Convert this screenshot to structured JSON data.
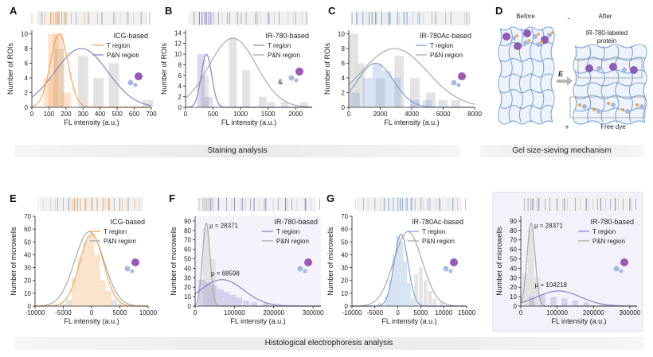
{
  "labels": {
    "staining_band": "Staining analysis",
    "gel_band": "Gel size-sieving mechanism",
    "histo_band": "Histological electrophoresis analysis"
  },
  "colors": {
    "orange": "#f5a356",
    "purple": "#8a84c9",
    "blue": "#7ea3d8",
    "gray": "#aaaaaa",
    "bar": "#dcdcdc"
  },
  "panel_d": {
    "label": "D",
    "before": "Before",
    "after": "After",
    "protein_label": "IR-780-labeled protein",
    "field": "E",
    "minus": "-",
    "plus": "+",
    "free_dye": "Free dye"
  },
  "chart_data": [
    {
      "id": "A",
      "type": "bar",
      "title": "ICG-based",
      "xlabel": "FL intensity (a.u.)",
      "ylabel": "Number of ROIs",
      "xlim": [
        0,
        700
      ],
      "ylim": [
        0,
        10.5
      ],
      "xticks": [
        0,
        100,
        200,
        300,
        400,
        500,
        600,
        700
      ],
      "yticks": [
        0,
        2,
        4,
        6,
        8,
        10
      ],
      "bin_width": 60,
      "t_bars": [
        {
          "x": 100,
          "y": 4
        },
        {
          "x": 125,
          "y": 10
        },
        {
          "x": 155,
          "y": 10
        },
        {
          "x": 200,
          "y": 2
        }
      ],
      "pn_bars": [
        {
          "x": 160,
          "y": 8
        },
        {
          "x": 300,
          "y": 7
        },
        {
          "x": 390,
          "y": 4
        },
        {
          "x": 480,
          "y": 6
        },
        {
          "x": 680,
          "y": 1
        }
      ],
      "t_fit": {
        "mu": 160,
        "sigma": 52,
        "amp": 10
      },
      "pn_fit": {
        "mu": 290,
        "sigma": 155,
        "amp": 8
      },
      "series": [
        {
          "name": "T region",
          "color": "#f5a356"
        },
        {
          "name": "P&N region",
          "color": "#8a84c9"
        }
      ],
      "rug_t": [
        110,
        125,
        140,
        150,
        160,
        175,
        190
      ],
      "rug_pn": [
        60,
        200,
        260,
        330,
        410,
        480,
        560,
        640,
        690
      ]
    },
    {
      "id": "B",
      "type": "bar",
      "title": "IR-780-based",
      "xlabel": "FL intensity (a.u.)",
      "ylabel": "Number of ROIs",
      "xlim": [
        0,
        2300
      ],
      "ylim": [
        0,
        14.5
      ],
      "xticks": [
        0,
        500,
        1000,
        1500,
        2000
      ],
      "yticks": [
        0,
        2,
        4,
        6,
        8,
        10,
        12,
        14
      ],
      "bin_width": 140,
      "t_bars": [
        {
          "x": 280,
          "y": 10
        },
        {
          "x": 420,
          "y": 2
        }
      ],
      "pn_bars": [
        {
          "x": 350,
          "y": 6
        },
        {
          "x": 860,
          "y": 13
        },
        {
          "x": 1100,
          "y": 7
        },
        {
          "x": 1400,
          "y": 2
        },
        {
          "x": 1550,
          "y": 1
        },
        {
          "x": 1800,
          "y": 1
        },
        {
          "x": 2150,
          "y": 1
        }
      ],
      "t_fit": {
        "mu": 380,
        "sigma": 95,
        "amp": 10
      },
      "pn_fit": {
        "mu": 860,
        "sigma": 430,
        "amp": 13
      },
      "series": [
        {
          "name": "T region",
          "color": "#8a84c9"
        },
        {
          "name": "P&N region",
          "color": "#aaaaaa"
        }
      ],
      "annotation": "&",
      "rug_t": [
        250,
        300,
        350,
        380,
        420,
        460
      ],
      "rug_pn": [
        150,
        600,
        800,
        950,
        1100,
        1300,
        1500,
        1700,
        2000,
        2200
      ]
    },
    {
      "id": "C",
      "type": "bar",
      "title": "IR-780Ac-based",
      "xlabel": "FL intensity (a.u.)",
      "ylabel": "Number of ROIs",
      "xlim": [
        0,
        8000
      ],
      "ylim": [
        0,
        10.5
      ],
      "xticks": [
        0,
        2000,
        4000,
        6000,
        8000
      ],
      "yticks": [
        0,
        2,
        4,
        6,
        8,
        10
      ],
      "bin_width": 600,
      "t_bars": [
        {
          "x": 400,
          "y": 2
        },
        {
          "x": 1200,
          "y": 4
        },
        {
          "x": 1800,
          "y": 6
        },
        {
          "x": 2400,
          "y": 5
        },
        {
          "x": 3000,
          "y": 4
        },
        {
          "x": 4200,
          "y": 1
        },
        {
          "x": 5000,
          "y": 1
        }
      ],
      "pn_bars": [
        {
          "x": 300,
          "y": 10
        },
        {
          "x": 700,
          "y": 6
        },
        {
          "x": 2000,
          "y": 4
        },
        {
          "x": 3200,
          "y": 7
        },
        {
          "x": 4200,
          "y": 4
        },
        {
          "x": 5200,
          "y": 2
        },
        {
          "x": 6000,
          "y": 1
        },
        {
          "x": 6800,
          "y": 1
        }
      ],
      "t_fit": {
        "mu": 1700,
        "sigma": 1150,
        "amp": 6
      },
      "pn_fit": {
        "mu": 2900,
        "sigma": 2100,
        "amp": 8
      },
      "series": [
        {
          "name": "T region",
          "color": "#7ea3d8"
        },
        {
          "name": "P&N region",
          "color": "#aaaaaa"
        }
      ],
      "rug_t": [
        500,
        900,
        1300,
        1700,
        2100,
        2600,
        3100,
        3700
      ],
      "rug_pn": [
        200,
        1500,
        2500,
        3500,
        4500,
        5500,
        6500,
        7500
      ]
    },
    {
      "id": "E",
      "type": "bar",
      "title": "ICG-based",
      "xlabel": "FL intensity (a.u.)",
      "ylabel": "Number of microwells",
      "xlim": [
        -10000,
        10000
      ],
      "ylim": [
        0,
        70
      ],
      "xticks": [
        -10000,
        -5000,
        0,
        5000,
        10000
      ],
      "yticks": [
        0,
        10,
        20,
        30,
        40,
        50,
        60,
        70
      ],
      "bin_width": 1000,
      "t_bars": [
        {
          "x": -3000,
          "y": 22
        },
        {
          "x": -2000,
          "y": 38
        },
        {
          "x": -1000,
          "y": 50
        },
        {
          "x": 0,
          "y": 55
        },
        {
          "x": 1000,
          "y": 40
        },
        {
          "x": 2000,
          "y": 20
        },
        {
          "x": 3000,
          "y": 12
        }
      ],
      "pn_bars": [
        {
          "x": -5000,
          "y": 2
        },
        {
          "x": -4000,
          "y": 5
        },
        {
          "x": 4000,
          "y": 5
        },
        {
          "x": 5000,
          "y": 2
        }
      ],
      "t_fit": {
        "mu": 0,
        "sigma": 2100,
        "amp": 56
      },
      "pn_fit": {
        "mu": -400,
        "sigma": 2600,
        "amp": 58
      },
      "series": [
        {
          "name": "T region",
          "color": "#f5a356"
        },
        {
          "name": "P&N region",
          "color": "#aaaaaa"
        }
      ],
      "rug_t": [
        -3000,
        -2000,
        -1000,
        0,
        1000,
        2000,
        3000
      ],
      "rug_pn": [
        -6000,
        -5000,
        -4000,
        -2500,
        4000,
        5000,
        6500
      ]
    },
    {
      "id": "F",
      "type": "bar",
      "title": "IR-780-based",
      "xlabel": "FL intensity (a.u.)",
      "ylabel": "Number of microwells",
      "xlim": [
        0,
        320000
      ],
      "ylim": [
        0,
        95
      ],
      "xticks": [
        0,
        100000,
        200000,
        300000
      ],
      "yticks": [
        0,
        10,
        20,
        30,
        40,
        50,
        60,
        70,
        80,
        90
      ],
      "bin_width": 16000,
      "t_bars": [
        {
          "x": 16000,
          "y": 28
        },
        {
          "x": 32000,
          "y": 25
        },
        {
          "x": 48000,
          "y": 22
        },
        {
          "x": 64000,
          "y": 18
        },
        {
          "x": 80000,
          "y": 15
        },
        {
          "x": 96000,
          "y": 12
        },
        {
          "x": 112000,
          "y": 9
        },
        {
          "x": 130000,
          "y": 6
        },
        {
          "x": 150000,
          "y": 4
        },
        {
          "x": 180000,
          "y": 3
        }
      ],
      "pn_bars": [
        {
          "x": 28000,
          "y": 82
        },
        {
          "x": 44000,
          "y": 50
        }
      ],
      "t_fit": {
        "mu": 68598,
        "sigma": 55000,
        "amp": 28
      },
      "pn_fit": {
        "mu": 28371,
        "sigma": 9500,
        "amp": 88
      },
      "series": [
        {
          "name": "T region",
          "color": "#8a84c9"
        },
        {
          "name": "P&N region",
          "color": "#aaaaaa"
        }
      ],
      "mu_labels": [
        "μ = 28371",
        "μ = 68598"
      ],
      "rug_t": [
        40000,
        60000,
        80000,
        100000,
        120000,
        150000,
        180000,
        230000,
        280000
      ],
      "rug_pn": [
        10000,
        20000,
        25000,
        30000,
        35000,
        45000
      ]
    },
    {
      "id": "G",
      "type": "bar",
      "title": "IR-780Ac-based",
      "xlabel": "FL intensity (a.u.)",
      "ylabel": "Number of microwells",
      "xlim": [
        -10000,
        15000
      ],
      "ylim": [
        0,
        70
      ],
      "xticks": [
        -10000,
        -5000,
        0,
        5000,
        10000,
        15000
      ],
      "yticks": [
        0,
        10,
        20,
        30,
        40,
        50,
        60,
        70
      ],
      "bin_width": 800,
      "t_bars": [
        {
          "x": -2400,
          "y": 8
        },
        {
          "x": -1600,
          "y": 20
        },
        {
          "x": -800,
          "y": 40
        },
        {
          "x": 0,
          "y": 55
        },
        {
          "x": 800,
          "y": 50
        },
        {
          "x": 1600,
          "y": 35
        },
        {
          "x": 2400,
          "y": 18
        },
        {
          "x": 3200,
          "y": 6
        }
      ],
      "pn_bars": [
        {
          "x": -4000,
          "y": 3
        },
        {
          "x": 4000,
          "y": 25
        },
        {
          "x": 5000,
          "y": 30
        },
        {
          "x": 6000,
          "y": 20
        },
        {
          "x": 7000,
          "y": 12
        },
        {
          "x": 8000,
          "y": 6
        },
        {
          "x": 9500,
          "y": 3
        }
      ],
      "t_fit": {
        "mu": 700,
        "sigma": 1500,
        "amp": 56
      },
      "pn_fit": {
        "mu": 2200,
        "sigma": 3100,
        "amp": 58
      },
      "series": [
        {
          "name": "T region",
          "color": "#7ea3d8"
        },
        {
          "name": "P&N region",
          "color": "#aaaaaa"
        }
      ],
      "rug_t": [
        -2000,
        -1000,
        0,
        500,
        1000,
        2000,
        3000
      ],
      "rug_pn": [
        -5000,
        -3000,
        3000,
        5000,
        7000,
        9000,
        12000
      ]
    },
    {
      "id": "H",
      "type": "bar",
      "title": "IR-780-based",
      "xlabel": "FL intensity (a.u.)",
      "ylabel": "Number of microwells",
      "xlim": [
        0,
        320000
      ],
      "ylim": [
        0,
        95
      ],
      "xticks": [
        0,
        100000,
        200000,
        300000
      ],
      "yticks": [
        0,
        10,
        20,
        30,
        40,
        50,
        60,
        70,
        80,
        90
      ],
      "bin_width": 16000,
      "t_bars": [
        {
          "x": 30000,
          "y": 10
        },
        {
          "x": 60000,
          "y": 12
        },
        {
          "x": 90000,
          "y": 10
        },
        {
          "x": 120000,
          "y": 8
        },
        {
          "x": 150000,
          "y": 6
        },
        {
          "x": 180000,
          "y": 4
        },
        {
          "x": 230000,
          "y": 2
        }
      ],
      "pn_bars": [
        {
          "x": 12000,
          "y": 35
        },
        {
          "x": 28000,
          "y": 82
        },
        {
          "x": 44000,
          "y": 30
        }
      ],
      "t_fit": {
        "mu": 104218,
        "sigma": 60000,
        "amp": 16
      },
      "pn_fit": {
        "mu": 28371,
        "sigma": 11000,
        "amp": 88
      },
      "series": [
        {
          "name": "T region",
          "color": "#8a84c9"
        },
        {
          "name": "P&N region",
          "color": "#aaaaaa"
        }
      ],
      "mu_labels": [
        "μ = 28371",
        "μ = 104218"
      ],
      "rug_t": [
        50000,
        80000,
        100000,
        120000,
        150000,
        180000,
        220000,
        260000,
        300000
      ],
      "rug_pn": [
        10000,
        20000,
        28000,
        35000,
        45000
      ]
    }
  ]
}
